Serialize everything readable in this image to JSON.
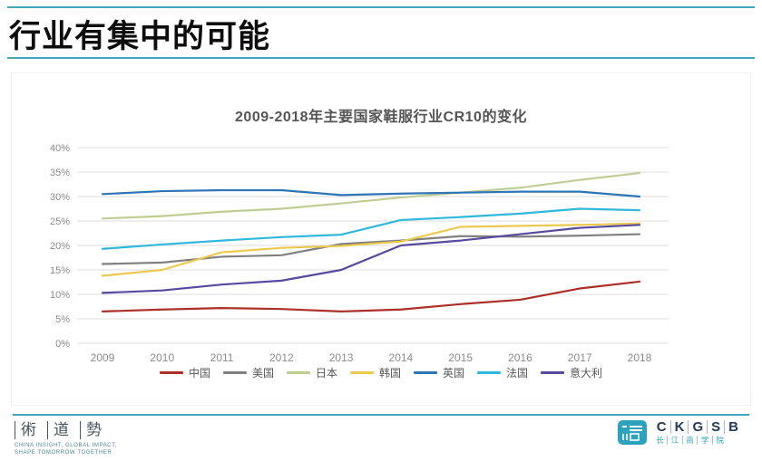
{
  "slide": {
    "title": "行业有集中的可能"
  },
  "theme": {
    "accent_teal": "#44a3bd",
    "grid_color": "#dcdcdc",
    "axis_text_color": "#8c8c8c",
    "chart_title_color": "#555555",
    "legend_text_color": "#595959",
    "ckgsb_teal": "#2ba3bf",
    "ckgsb_navy": "#233b5b"
  },
  "chart_data": {
    "type": "line",
    "title": "2009-2018年主要国家鞋服行业CR10的变化",
    "x": [
      2009,
      2010,
      2011,
      2012,
      2013,
      2014,
      2015,
      2016,
      2017,
      2018
    ],
    "ylim": [
      0,
      40
    ],
    "ytick_step": 5,
    "ytick_suffix": "%",
    "grid": true,
    "legend_position": "bottom",
    "series": [
      {
        "name": "中国",
        "color": "#ac2f28",
        "values": [
          6.5,
          6.9,
          7.2,
          7.0,
          6.5,
          6.9,
          8.0,
          8.9,
          11.2,
          12.6
        ]
      },
      {
        "name": "美国",
        "color": "#808080",
        "values": [
          16.2,
          16.5,
          17.7,
          18.0,
          20.3,
          21.0,
          21.9,
          21.8,
          22.0,
          22.3
        ]
      },
      {
        "name": "日本",
        "color": "#bece93",
        "values": [
          25.5,
          26.0,
          26.9,
          27.5,
          28.6,
          29.8,
          30.8,
          31.8,
          33.4,
          34.8
        ]
      },
      {
        "name": "韩国",
        "color": "#ecc94f",
        "values": [
          13.8,
          15.0,
          18.6,
          19.5,
          19.9,
          20.8,
          23.8,
          24.0,
          24.2,
          24.5
        ]
      },
      {
        "name": "英国",
        "color": "#2e75b6",
        "values": [
          30.5,
          31.1,
          31.3,
          31.3,
          30.3,
          30.6,
          30.8,
          31.0,
          31.0,
          30.0
        ]
      },
      {
        "name": "法国",
        "color": "#2fb8dc",
        "values": [
          19.3,
          20.2,
          21.0,
          21.7,
          22.2,
          25.2,
          25.8,
          26.5,
          27.5,
          27.2
        ]
      },
      {
        "name": "意大利",
        "color": "#564a9e",
        "values": [
          10.3,
          10.8,
          12.0,
          12.8,
          15.0,
          20.0,
          21.0,
          22.3,
          23.6,
          24.2
        ]
      }
    ]
  },
  "footer": {
    "left_logo": {
      "seal_characters": [
        "術",
        "道",
        "勢"
      ],
      "tagline_line1": "CHINA INSIGHT, GLOBAL IMPACT,",
      "tagline_line2": "SHAPE TOMORROW TOGETHER"
    },
    "right_logo": {
      "acronym_letters": [
        "C",
        "K",
        "G",
        "S",
        "B"
      ],
      "chinese_letters": [
        "长",
        "江",
        "商",
        "学",
        "院"
      ]
    }
  }
}
